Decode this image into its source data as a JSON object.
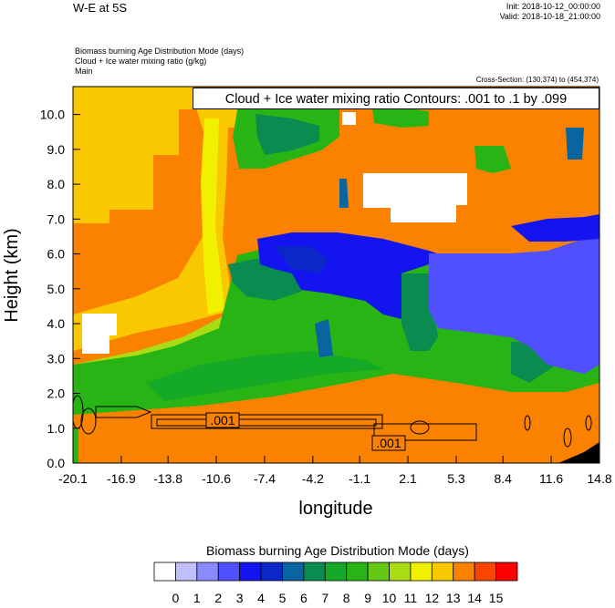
{
  "header": {
    "title": "W-E at 5S",
    "init": "Init: 2018-10-12_00:00:00",
    "valid": "Valid: 2018-10-18_21:00:00",
    "fields": [
      "Biomass burning Age Distribution Mode   (days)",
      "Cloud + Ice water mixing ratio   (g/kg)",
      "Main"
    ],
    "cross_section": "Cross-Section: (130,374) to (454,374)",
    "contours": "Cloud + Ice water mixing ratio Contours: .001 to .1 by .099"
  },
  "chart_data": {
    "type": "heatmap",
    "xlabel": "longitude",
    "ylabel": "Height (km)",
    "xlim": [
      -20.1,
      14.8
    ],
    "ylim": [
      0.0,
      10.8
    ],
    "x_ticks": [
      "-20.1",
      "-16.9",
      "-13.8",
      "-10.6",
      "-7.4",
      "-4.2",
      "-1.1",
      "2.1",
      "5.3",
      "8.4",
      "11.6",
      "14.8"
    ],
    "y_ticks": [
      "0.0",
      "1.0",
      "2.0",
      "3.0",
      "4.0",
      "5.0",
      "6.0",
      "7.0",
      "8.0",
      "9.0",
      "10.0"
    ],
    "contour_labels": [
      ".001",
      ".001"
    ],
    "colorbar": {
      "title": "Biomass burning Age Distribution Mode  (days)",
      "labels": [
        "0",
        "1",
        "2",
        "3",
        "4",
        "5",
        "6",
        "7",
        "8",
        "9",
        "10",
        "11",
        "12",
        "13",
        "14",
        "15"
      ],
      "colors": [
        "#ffffff",
        "#c0c0ff",
        "#8a8aff",
        "#5050ff",
        "#1414f0",
        "#0a28c8",
        "#0a64a0",
        "#0a8c50",
        "#14aa28",
        "#28b414",
        "#64c814",
        "#aadc14",
        "#f0f000",
        "#fac800",
        "#fa8200",
        "#fa4600",
        "#ff0000"
      ]
    },
    "colors": {
      "orange": "#fa8200",
      "amber": "#fac800",
      "yellow": "#f0f000",
      "lime": "#aadc14",
      "green": "#28b414",
      "dark_green": "#0a8c50",
      "teal": "#0a64a0",
      "blue": "#1414f0",
      "light_blue": "#5050ff",
      "white": "#ffffff"
    }
  }
}
